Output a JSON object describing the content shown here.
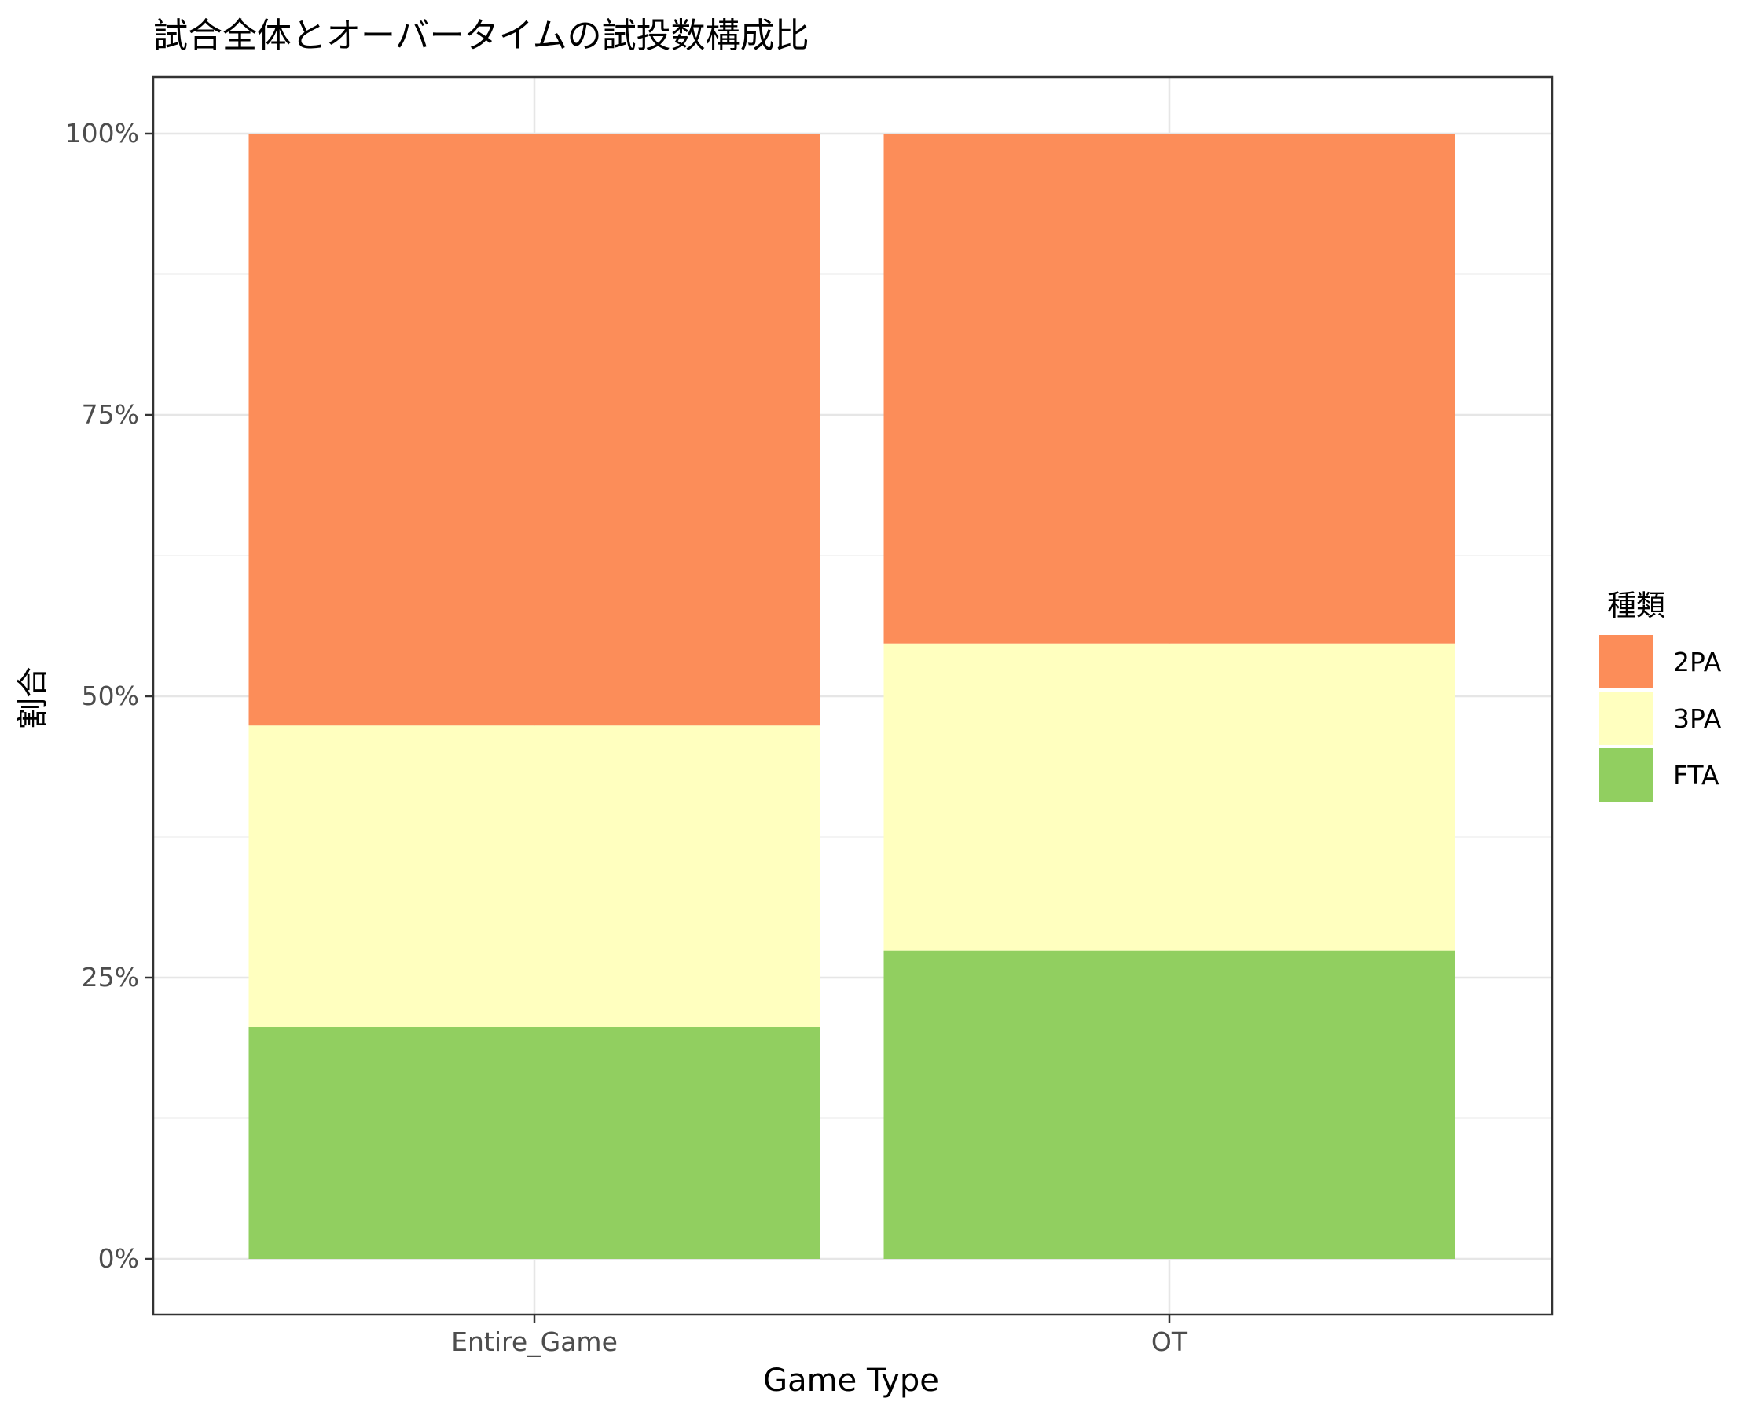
{
  "chart_data": {
    "type": "bar",
    "stacked": true,
    "position": "fill",
    "title": "試合全体とオーバータイムの試投数構成比",
    "xlabel": "Game Type",
    "ylabel": "割合",
    "categories": [
      "Entire_Game",
      "OT"
    ],
    "series": [
      {
        "name": "2PA",
        "color": "#FC8D59",
        "values": [
          52.6,
          45.3
        ]
      },
      {
        "name": "3PA",
        "color": "#FFFFBF",
        "values": [
          26.8,
          27.3
        ]
      },
      {
        "name": "FTA",
        "color": "#91CF60",
        "values": [
          20.6,
          27.4
        ]
      }
    ],
    "ylim": [
      0,
      100
    ],
    "y_ticks": [
      0,
      25,
      50,
      75,
      100
    ],
    "y_tick_labels": [
      "0%",
      "25%",
      "50%",
      "75%",
      "100%"
    ],
    "grid": true,
    "legend": {
      "title": "種類",
      "placement": "right"
    }
  }
}
